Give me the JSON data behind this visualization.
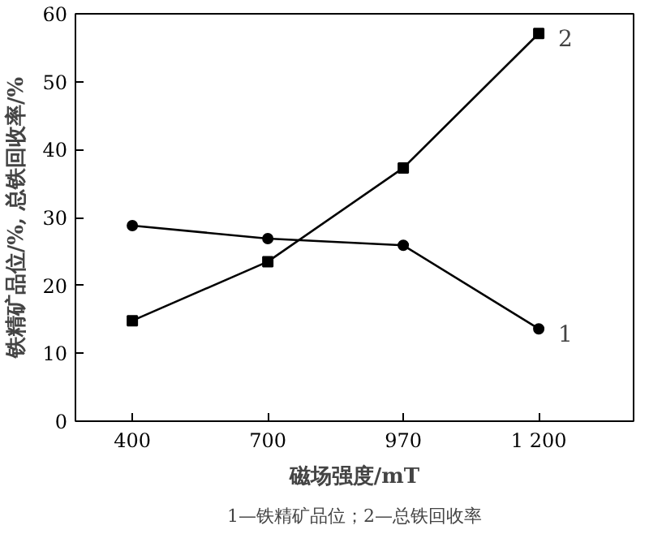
{
  "chart_data": {
    "type": "line",
    "xlabel": "磁场强度/mT",
    "ylabel": "铁精矿品位/%, 总铁回收率/%",
    "categories": [
      "400",
      "700",
      "970",
      "1 200"
    ],
    "ylim": [
      0,
      60
    ],
    "yticks": [
      0,
      10,
      20,
      30,
      40,
      50,
      60
    ],
    "grid": false,
    "line_style": "solid",
    "series": [
      {
        "name": "1",
        "color": "#000000",
        "marker": "circle",
        "values": [
          28.8,
          26.9,
          25.9,
          13.6
        ]
      },
      {
        "name": "2",
        "color": "#000000",
        "marker": "square",
        "values": [
          14.8,
          23.5,
          37.3,
          57.1
        ]
      }
    ],
    "annotations": [
      "1—铁精矿品位；2—总铁回收率"
    ]
  }
}
